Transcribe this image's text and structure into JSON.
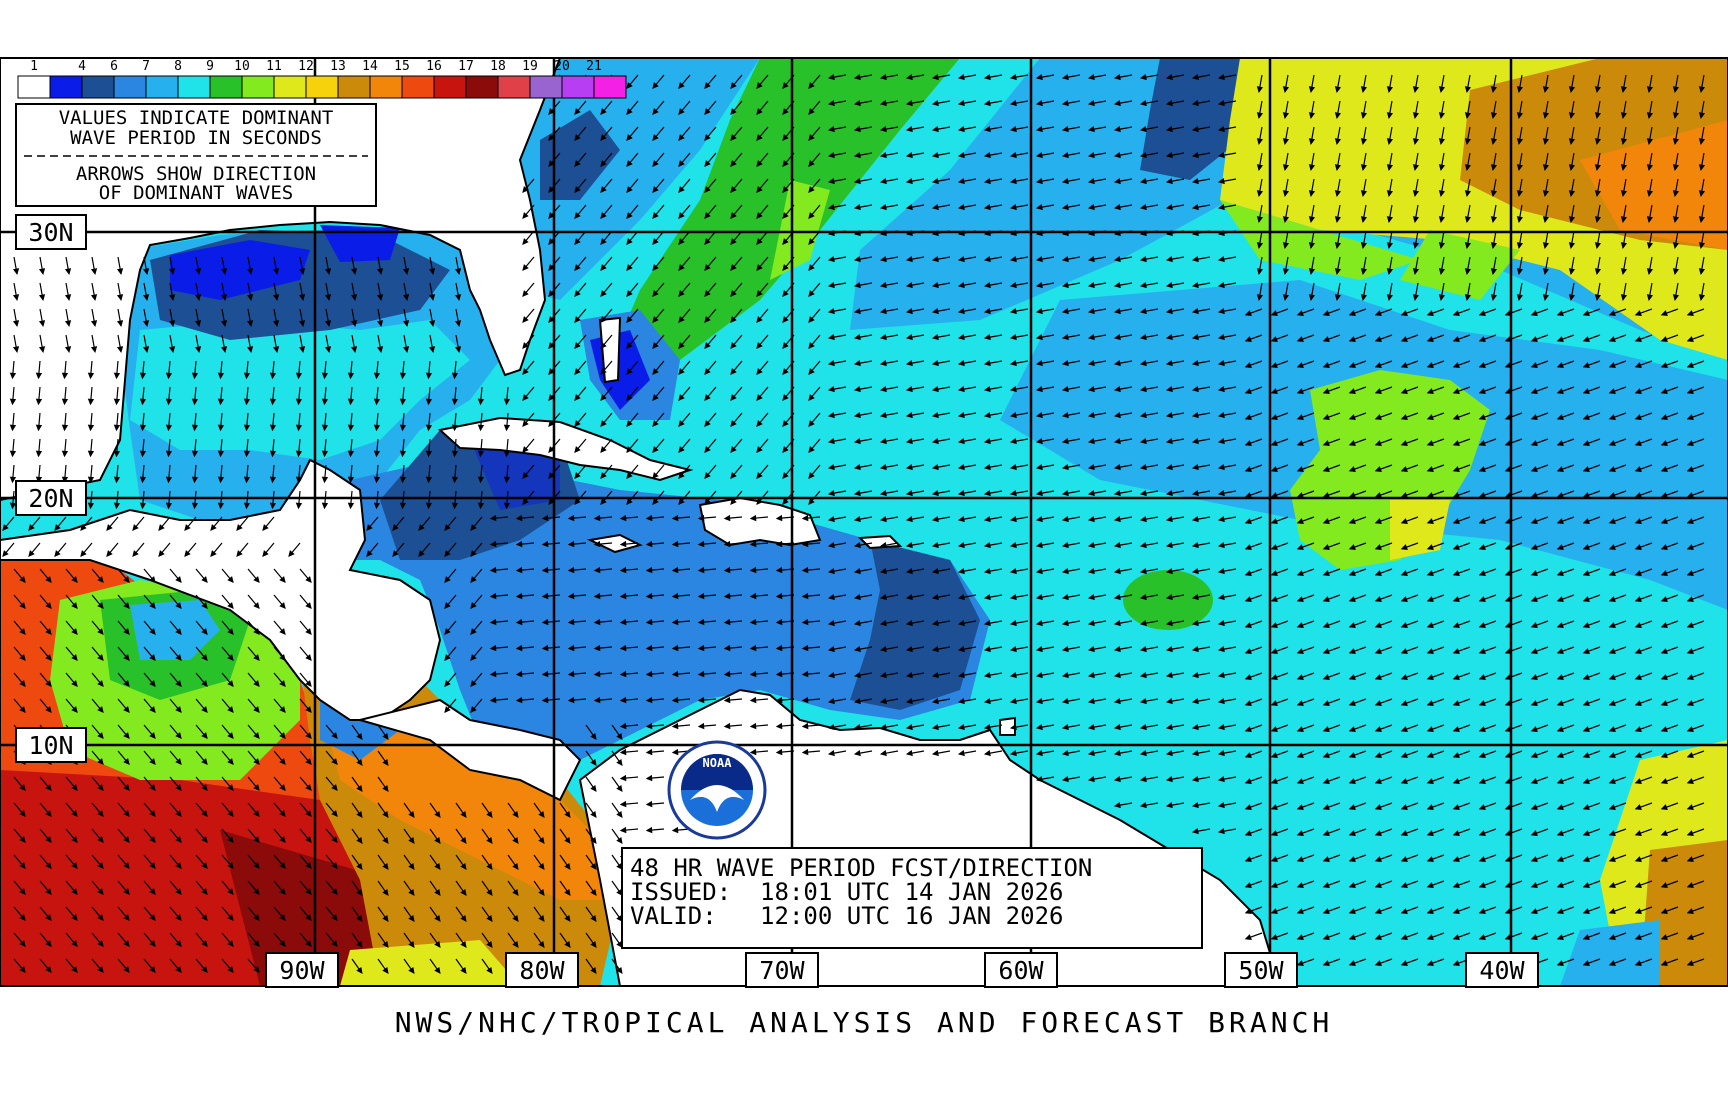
{
  "color_scale": {
    "labels": [
      "1",
      "4",
      "6",
      "7",
      "8",
      "9",
      "10",
      "11",
      "12",
      "13",
      "14",
      "15",
      "16",
      "17",
      "18",
      "19",
      "20",
      "21"
    ],
    "colors": [
      "#ffffff",
      "#0a1de8",
      "#1c4f93",
      "#2a86e0",
      "#27b0ee",
      "#1fe3e8",
      "#28c12a",
      "#83ea1f",
      "#dfe81b",
      "#f6d20c",
      "#cc8a0b",
      "#f2860a",
      "#ee4a10",
      "#c8140e",
      "#8b0a0a",
      "#e04048",
      "#9a64d0",
      "#b73ef2",
      "#f420e6"
    ]
  },
  "legend_box": {
    "line1": "VALUES INDICATE DOMINANT",
    "line2": "WAVE PERIOD IN SECONDS",
    "line3": "ARROWS SHOW DIRECTION",
    "line4": "OF DOMINANT WAVES"
  },
  "lat_labels": [
    "30N",
    "20N",
    "10N"
  ],
  "lon_labels": [
    "90W",
    "80W",
    "70W",
    "60W",
    "50W",
    "40W"
  ],
  "title_box": {
    "title": "48 HR WAVE PERIOD FCST/DIRECTION",
    "issued": "ISSUED:  18:01 UTC 14 JAN 2026",
    "valid": "VALID:   12:00 UTC 16 JAN 2026"
  },
  "logo": {
    "text": "NOAA"
  },
  "footer": "NWS/NHC/TROPICAL ANALYSIS AND FORECAST BRANCH",
  "colors": {
    "land": "#ffffff",
    "coast": "#000000",
    "grid": "#000000",
    "background_ocean": "#1fe3e8"
  }
}
